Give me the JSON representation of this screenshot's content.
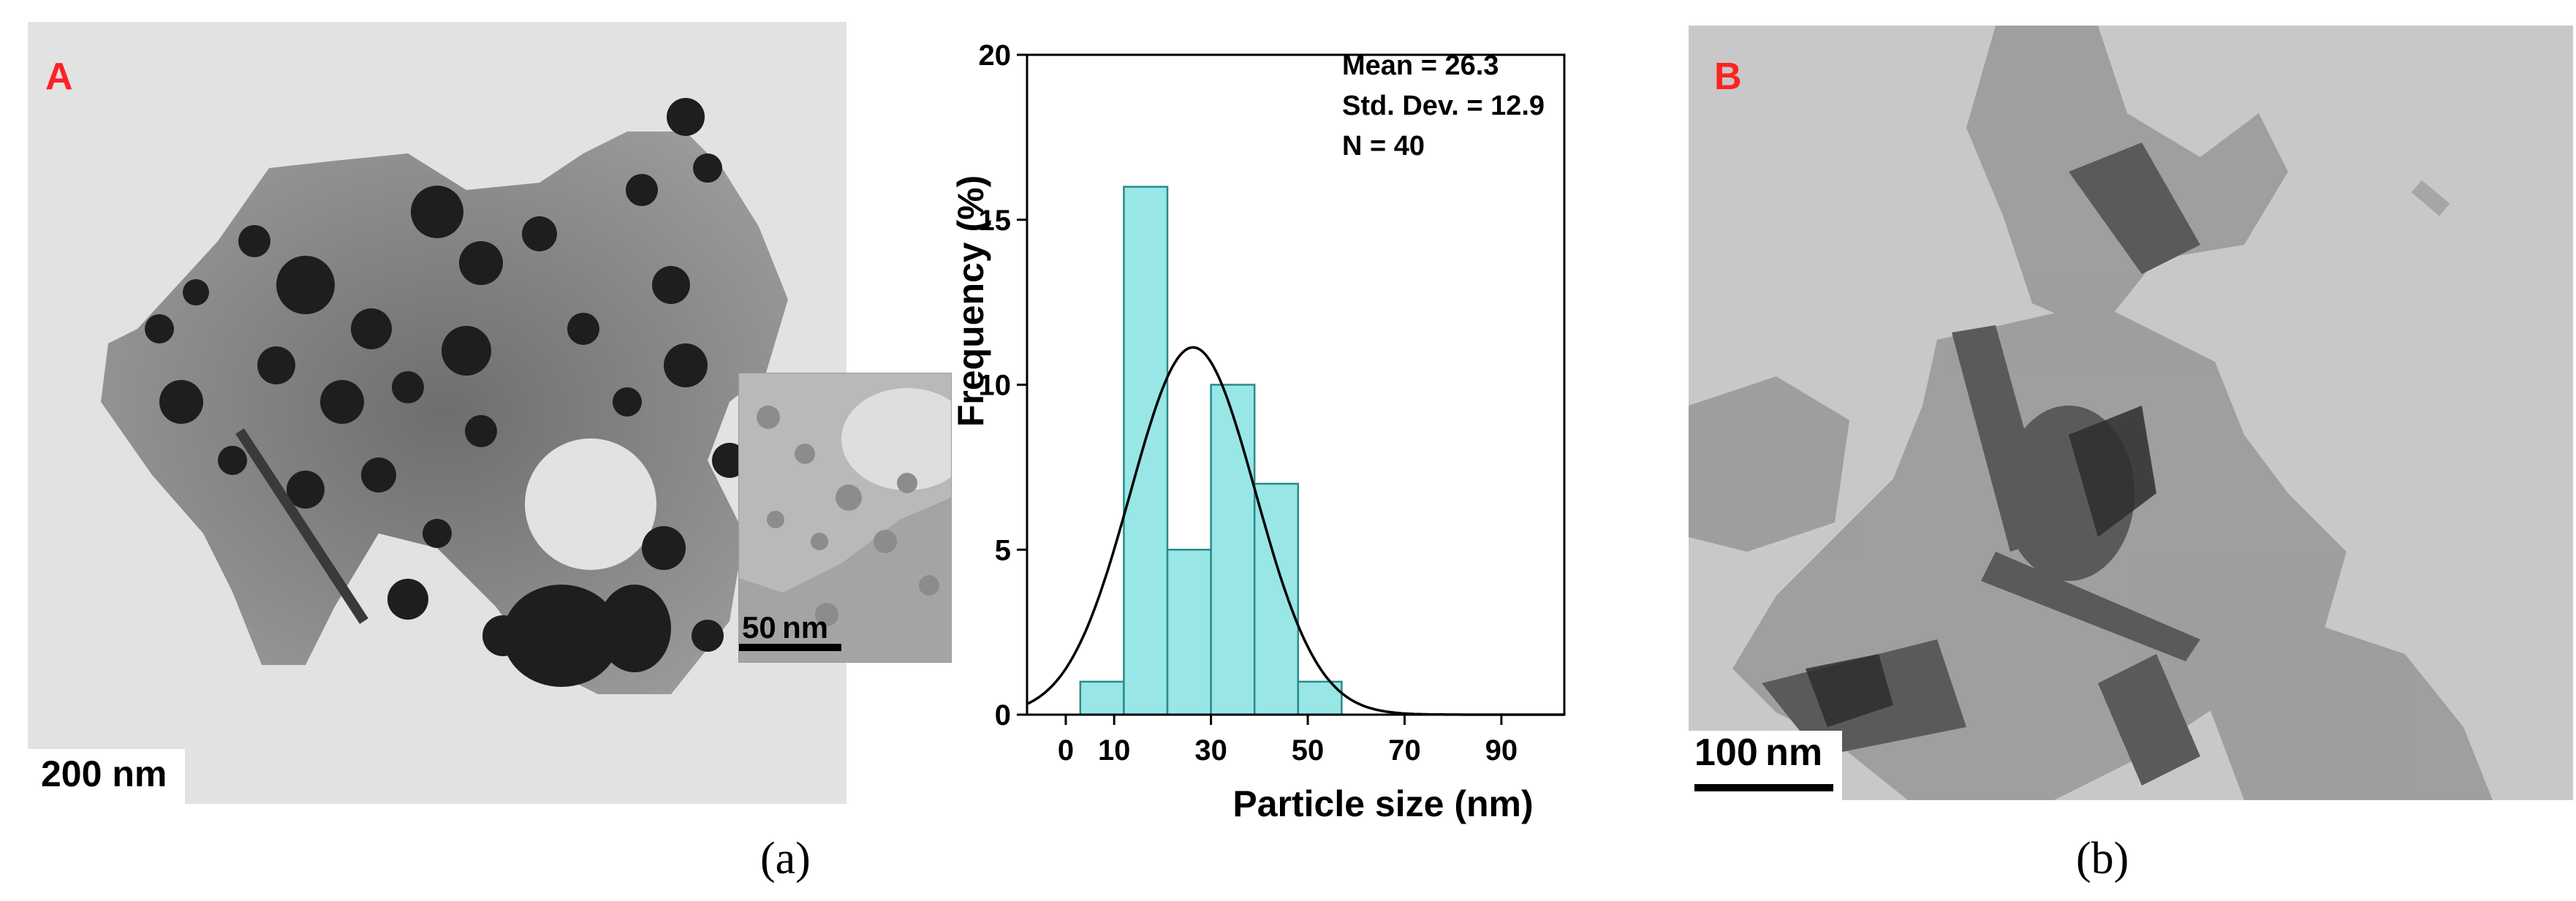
{
  "panel_a": {
    "label": "A",
    "scale_bar": "200 nm",
    "inset_scale_bar": "50 nm",
    "caption": "(a)"
  },
  "panel_b": {
    "label": "B",
    "scale_bar": "100 nm",
    "caption": "(b)"
  },
  "chart_data": {
    "type": "bar",
    "title": "",
    "xlabel": "Particle size (nm)",
    "ylabel": "Frequency (%)",
    "bin_edges": [
      3,
      12,
      21,
      30,
      39,
      48,
      57
    ],
    "values": [
      1,
      16,
      5,
      10,
      7,
      1
    ],
    "x_ticks": [
      "0",
      "10",
      "30",
      "50",
      "70",
      "90"
    ],
    "x_tick_values": [
      0,
      10,
      30,
      50,
      70,
      90
    ],
    "y_ticks": [
      "0",
      "5",
      "10",
      "15",
      "20"
    ],
    "y_tick_values": [
      0,
      5,
      10,
      15,
      20
    ],
    "xlim": [
      -8,
      103
    ],
    "ylim": [
      0,
      20
    ],
    "normal_curve": {
      "mean": 26.3,
      "std": 12.9
    },
    "stats": [
      "Mean = 26.3",
      "Std. Dev. = 12.9",
      "N = 40"
    ],
    "bar_color": "#99e6e6",
    "bar_edge": "#2a8a8a",
    "curve_color": "#000000",
    "grid": false
  }
}
